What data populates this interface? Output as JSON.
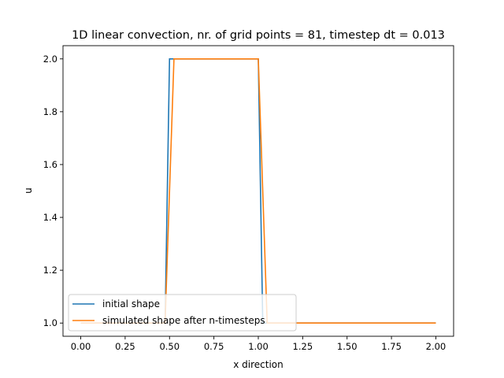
{
  "chart_data": {
    "type": "line",
    "title": "1D linear convection, nr. of grid points = 81, timestep dt = 0.013",
    "xlabel": "x direction",
    "ylabel": "u",
    "xlim": [
      -0.1,
      2.1
    ],
    "ylim": [
      0.95,
      2.05
    ],
    "xticks": [
      0.0,
      0.25,
      0.5,
      0.75,
      1.0,
      1.25,
      1.5,
      1.75,
      2.0
    ],
    "xtick_labels": [
      "0.00",
      "0.25",
      "0.50",
      "0.75",
      "1.00",
      "1.25",
      "1.50",
      "1.75",
      "2.00"
    ],
    "yticks": [
      1.0,
      1.2,
      1.4,
      1.6,
      1.8,
      2.0
    ],
    "ytick_labels": [
      "1.0",
      "1.2",
      "1.4",
      "1.6",
      "1.8",
      "2.0"
    ],
    "grid": false,
    "legend_position": "lower-left",
    "series": [
      {
        "name": "initial shape",
        "color": "#1f77b4",
        "x": [
          0.0,
          0.475,
          0.5,
          1.0,
          1.025,
          2.0
        ],
        "y": [
          1.0,
          1.0,
          2.0,
          2.0,
          1.0,
          1.0
        ]
      },
      {
        "name": "simulated shape after n-timesteps",
        "color": "#ff7f0e",
        "x": [
          0.0,
          0.475,
          0.525,
          1.0,
          1.05,
          2.0
        ],
        "y": [
          1.0,
          1.0,
          2.0,
          2.0,
          1.0,
          1.0
        ]
      }
    ]
  }
}
